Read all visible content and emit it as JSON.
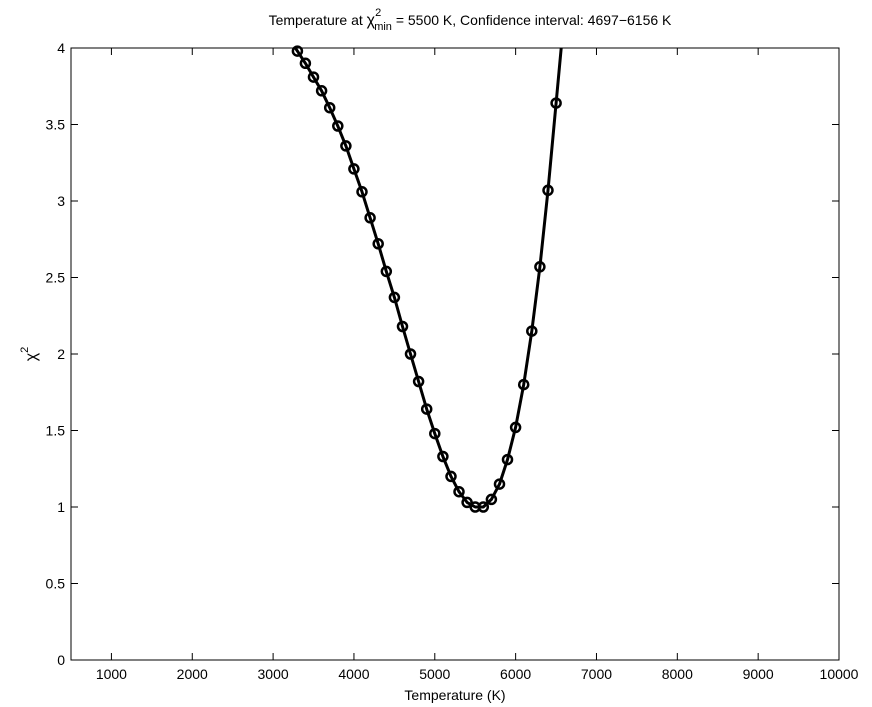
{
  "chart_data": {
    "type": "line",
    "title": {
      "prefix": "Temperature at ",
      "symbol": "χ",
      "superscript": "2",
      "subscript": "min",
      "suffix": " = 5500 K, Confidence interval: 4697−6156 K"
    },
    "xlabel": "Temperature (K)",
    "ylabel": {
      "symbol": "χ",
      "superscript": "2"
    },
    "xlim": [
      500,
      10000
    ],
    "ylim": [
      0,
      4
    ],
    "xticks": [
      1000,
      2000,
      3000,
      4000,
      5000,
      6000,
      7000,
      8000,
      9000,
      10000
    ],
    "yticks": [
      0,
      0.5,
      1,
      1.5,
      2,
      2.5,
      3,
      3.5,
      4
    ],
    "ytick_labels": [
      "0",
      "0.5",
      "1",
      "1.5",
      "2",
      "2.5",
      "3",
      "3.5",
      "4"
    ],
    "grid": false,
    "marker": "circle",
    "line_color": "#000000",
    "series": [
      {
        "x": [
          3300,
          3400,
          3500,
          3600,
          3700,
          3800,
          3900,
          4000,
          4100,
          4200,
          4300,
          4400,
          4500,
          4600,
          4700,
          4800,
          4900,
          5000,
          5100,
          5200,
          5300,
          5400,
          5500,
          5600,
          5700,
          5800,
          5900,
          6000,
          6100,
          6200,
          6300,
          6400,
          6500
        ],
        "y": [
          3.98,
          3.9,
          3.81,
          3.72,
          3.61,
          3.49,
          3.36,
          3.21,
          3.06,
          2.89,
          2.72,
          2.54,
          2.37,
          2.18,
          2.0,
          1.82,
          1.64,
          1.48,
          1.33,
          1.2,
          1.1,
          1.03,
          1.0,
          1.0,
          1.05,
          1.15,
          1.31,
          1.52,
          1.8,
          2.15,
          2.57,
          3.07,
          3.64
        ]
      }
    ]
  }
}
